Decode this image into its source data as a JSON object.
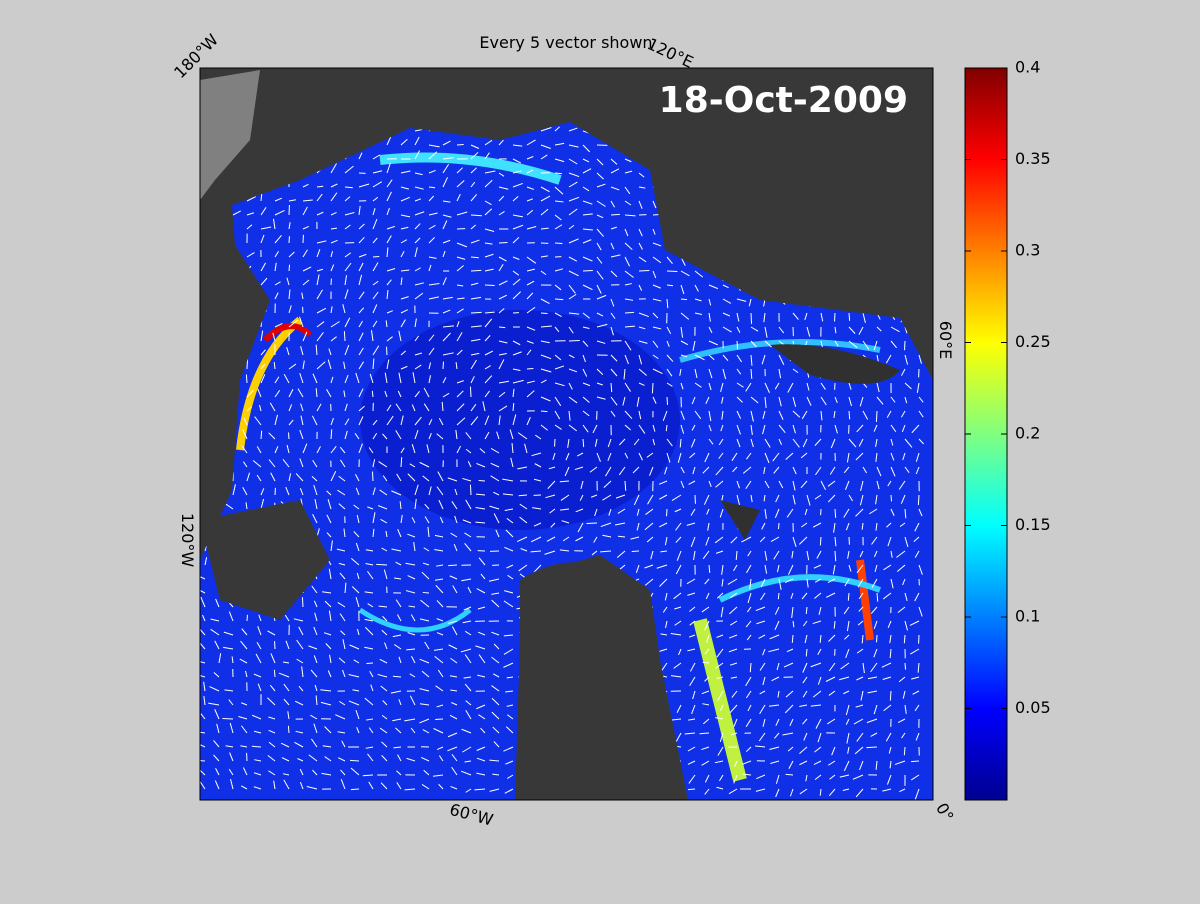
{
  "title": "Every 5 vector shown",
  "date_label": "18-Oct-2009",
  "longitude_labels": [
    "180°W",
    "120°E",
    "60°E",
    "0°",
    "60°W",
    "120°W"
  ],
  "colorbar": {
    "lim": [
      0,
      0.4
    ],
    "ticks": [
      0.05,
      0.1,
      0.15,
      0.2,
      0.25,
      0.3,
      0.35,
      0.4
    ]
  }
}
